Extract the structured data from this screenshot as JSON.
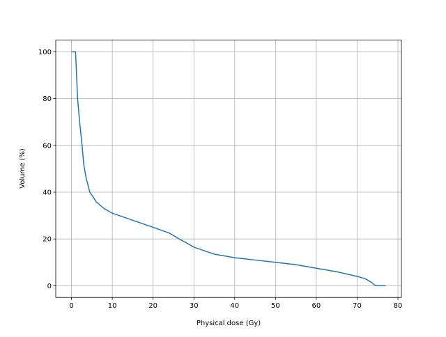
{
  "chart_data": {
    "type": "line",
    "xlabel": "Physical dose (Gy)",
    "ylabel": "Volume (%)",
    "x": [
      0,
      1,
      1.5,
      2,
      2.6,
      3,
      3.6,
      4.5,
      5.3,
      6,
      8,
      10,
      15,
      20,
      24,
      26.4,
      28,
      30,
      35,
      40,
      45,
      50,
      55,
      60,
      65,
      70,
      72,
      73.5,
      74.3,
      75,
      77
    ],
    "series": [
      {
        "name": "Volume",
        "color": "#1f77b4",
        "values": [
          100,
          100,
          80,
          70,
          60,
          52,
          46,
          40,
          38,
          36,
          33,
          31,
          28,
          25,
          22.5,
          20,
          18.5,
          16.5,
          13.5,
          12,
          11,
          10,
          9,
          7.5,
          6,
          4,
          3,
          1.5,
          0.3,
          0,
          0
        ]
      }
    ],
    "xlim": [
      -3.85,
      80.85
    ],
    "xticks": [
      0,
      10,
      20,
      30,
      40,
      50,
      60,
      70,
      80
    ],
    "ylim": [
      -5,
      105
    ],
    "yticks": [
      0,
      20,
      40,
      60,
      80,
      100
    ],
    "grid": true
  }
}
